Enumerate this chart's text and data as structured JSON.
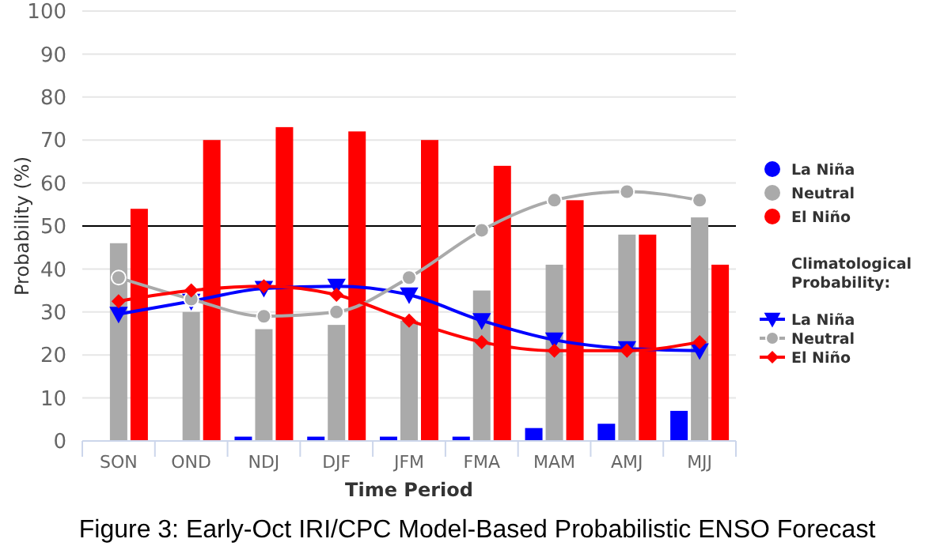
{
  "chart_data": {
    "type": "bar",
    "title": "Figure 3: Early-Oct IRI/CPC Model-Based Probabilistic ENSO Forecast",
    "xlabel": "Time Period",
    "ylabel": "Probability (%)",
    "legend_title": "Climatological Probability:",
    "categories": [
      "SON",
      "OND",
      "NDJ",
      "DJF",
      "JFM",
      "FMA",
      "MAM",
      "AMJ",
      "MJJ"
    ],
    "series": [
      {
        "name": "La Niña",
        "color": "#0000ff",
        "values": [
          0,
          0,
          1,
          1,
          1,
          1,
          3,
          4,
          7
        ]
      },
      {
        "name": "Neutral",
        "color": "#aaaaaa",
        "values": [
          46,
          30,
          26,
          27,
          28,
          35,
          41,
          48,
          52
        ]
      },
      {
        "name": "El Niño",
        "color": "#ff0000",
        "values": [
          54,
          70,
          73,
          72,
          70,
          64,
          56,
          48,
          41
        ]
      },
      {
        "name": "La Niña",
        "type": "line",
        "marker": "triangle",
        "color": "#0000ff",
        "values": [
          29.5,
          32.5,
          35.5,
          36,
          34,
          28,
          23.5,
          21.5,
          21
        ]
      },
      {
        "name": "Neutral",
        "type": "line",
        "marker": "circle",
        "color": "#aaaaaa",
        "values": [
          38,
          33,
          29,
          30,
          38,
          49,
          56,
          58,
          56
        ]
      },
      {
        "name": "El Niño",
        "type": "line",
        "marker": "diamond",
        "color": "#ff0000",
        "values": [
          32.5,
          35,
          36,
          34,
          28,
          23,
          21,
          21,
          23
        ]
      }
    ],
    "ylim": [
      0,
      100
    ],
    "yticks": [
      0,
      10,
      20,
      30,
      40,
      50,
      60,
      70,
      80,
      90,
      100
    ],
    "grid": "y",
    "legend": "right",
    "ref_lines": [
      {
        "axis": "y",
        "value": 50,
        "color": "#000000"
      }
    ]
  }
}
